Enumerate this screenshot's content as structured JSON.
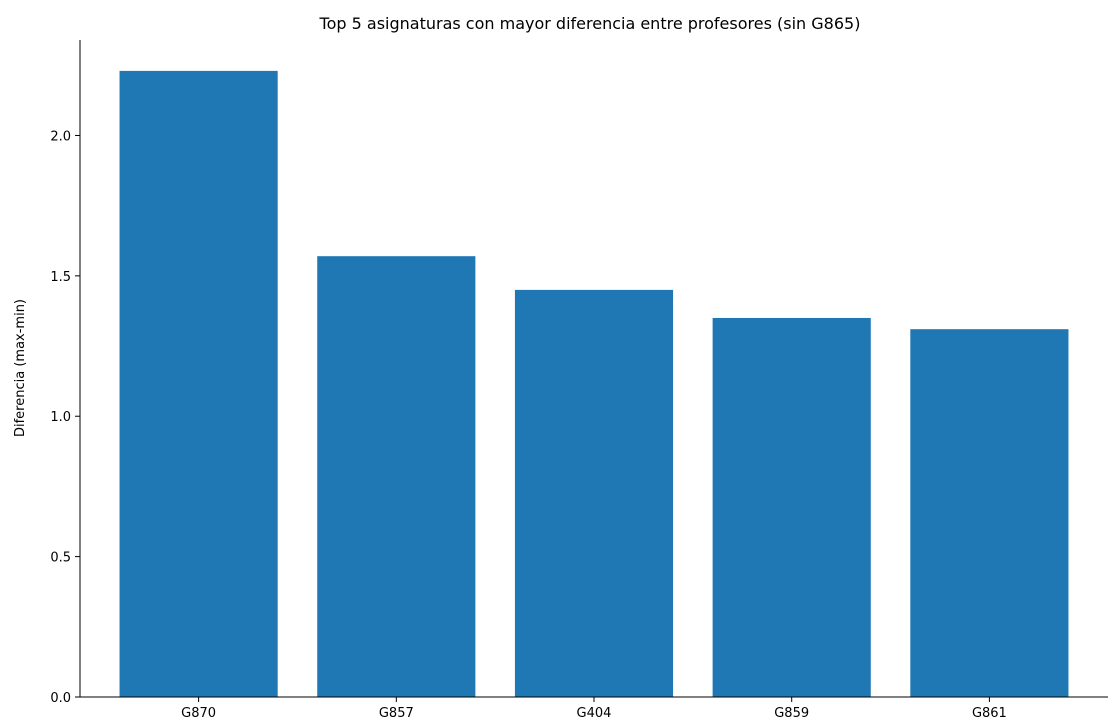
{
  "chart_data": {
    "type": "bar",
    "title": "Top 5 asignaturas con mayor diferencia entre profesores (sin G865)",
    "xlabel": "",
    "ylabel": "Diferencia (max-min)",
    "categories": [
      "G870",
      "G857",
      "G404",
      "G859",
      "G861"
    ],
    "values": [
      2.23,
      1.57,
      1.45,
      1.35,
      1.31
    ],
    "ylim": [
      0,
      2.34
    ],
    "yticks": [
      0.0,
      0.5,
      1.0,
      1.5,
      2.0
    ],
    "ytick_labels": [
      "0.0",
      "0.5",
      "1.0",
      "1.5",
      "2.0"
    ],
    "bar_color": "#1f77b4",
    "grid": false,
    "legend": "none"
  }
}
